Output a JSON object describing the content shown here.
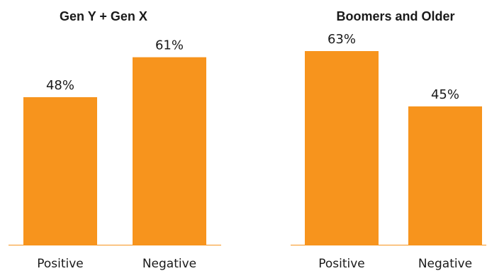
{
  "colors": {
    "bar": "#f7941d",
    "baseline": "#f7941d",
    "text": "#1a1a1a"
  },
  "chart_data": [
    {
      "type": "bar",
      "title": "Gen Y + Gen X",
      "categories": [
        "Positive",
        "Negative"
      ],
      "values": [
        48,
        61
      ],
      "value_labels": [
        "48%",
        "61%"
      ],
      "ylim": [
        0,
        75
      ],
      "grid": false
    },
    {
      "type": "bar",
      "title": "Boomers and Older",
      "categories": [
        "Positive",
        "Negative"
      ],
      "values": [
        63,
        45
      ],
      "value_labels": [
        "63%",
        "45%"
      ],
      "ylim": [
        0,
        75
      ],
      "grid": false
    }
  ]
}
